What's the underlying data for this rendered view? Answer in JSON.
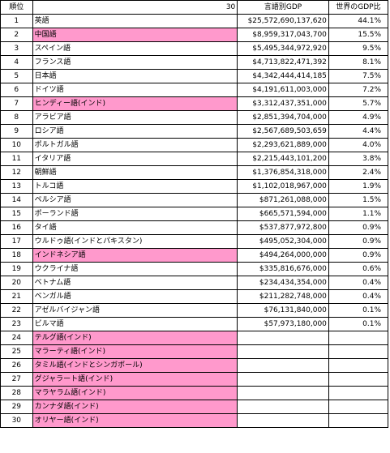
{
  "header": {
    "rank": "順位",
    "count": "30",
    "gdp": "言語別GDP",
    "share": "世界のGDP比"
  },
  "rows": [
    {
      "rank": "1",
      "lang": "英語",
      "gdp": "$25,572,690,137,620",
      "share": "44.1%",
      "highlight": false
    },
    {
      "rank": "2",
      "lang": "中国語",
      "gdp": "$8,959,317,043,700",
      "share": "15.5%",
      "highlight": true
    },
    {
      "rank": "3",
      "lang": "スペイン語",
      "gdp": "$5,495,344,972,920",
      "share": "9.5%",
      "highlight": false
    },
    {
      "rank": "4",
      "lang": "フランス語",
      "gdp": "$4,713,822,471,392",
      "share": "8.1%",
      "highlight": false
    },
    {
      "rank": "5",
      "lang": "日本語",
      "gdp": "$4,342,444,414,185",
      "share": "7.5%",
      "highlight": false
    },
    {
      "rank": "6",
      "lang": "ドイツ語",
      "gdp": "$4,191,611,003,000",
      "share": "7.2%",
      "highlight": false
    },
    {
      "rank": "7",
      "lang": "ヒンディー語(インド)",
      "gdp": "$3,312,437,351,000",
      "share": "5.7%",
      "highlight": true
    },
    {
      "rank": "8",
      "lang": "アラビア語",
      "gdp": "$2,851,394,704,000",
      "share": "4.9%",
      "highlight": false
    },
    {
      "rank": "9",
      "lang": "ロシア語",
      "gdp": "$2,567,689,503,659",
      "share": "4.4%",
      "highlight": false
    },
    {
      "rank": "10",
      "lang": "ポルトガル語",
      "gdp": "$2,293,621,889,000",
      "share": "4.0%",
      "highlight": false
    },
    {
      "rank": "11",
      "lang": "イタリア語",
      "gdp": "$2,215,443,101,200",
      "share": "3.8%",
      "highlight": false
    },
    {
      "rank": "12",
      "lang": "朝鮮語",
      "gdp": "$1,376,854,318,000",
      "share": "2.4%",
      "highlight": false
    },
    {
      "rank": "13",
      "lang": "トルコ語",
      "gdp": "$1,102,018,967,000",
      "share": "1.9%",
      "highlight": false
    },
    {
      "rank": "14",
      "lang": "ペルシア語",
      "gdp": "$871,261,088,000",
      "share": "1.5%",
      "highlight": false
    },
    {
      "rank": "15",
      "lang": "ポーランド語",
      "gdp": "$665,571,594,000",
      "share": "1.1%",
      "highlight": false
    },
    {
      "rank": "16",
      "lang": "タイ語",
      "gdp": "$537,877,972,800",
      "share": "0.9%",
      "highlight": false
    },
    {
      "rank": "17",
      "lang": "ウルドゥ語(インドとパキスタン)",
      "gdp": "$495,052,304,000",
      "share": "0.9%",
      "highlight": false
    },
    {
      "rank": "18",
      "lang": "インドネシア語",
      "gdp": "$494,264,000,000",
      "share": "0.9%",
      "highlight": true
    },
    {
      "rank": "19",
      "lang": "ウクライナ語",
      "gdp": "$335,816,676,000",
      "share": "0.6%",
      "highlight": false
    },
    {
      "rank": "20",
      "lang": "ベトナム語",
      "gdp": "$234,434,354,000",
      "share": "0.4%",
      "highlight": false
    },
    {
      "rank": "21",
      "lang": "ベンガル語",
      "gdp": "$211,282,748,000",
      "share": "0.4%",
      "highlight": false
    },
    {
      "rank": "22",
      "lang": "アゼルバイジャン語",
      "gdp": "$76,131,840,000",
      "share": "0.1%",
      "highlight": false
    },
    {
      "rank": "23",
      "lang": "ビルマ語",
      "gdp": "$57,973,180,000",
      "share": "0.1%",
      "highlight": false
    },
    {
      "rank": "24",
      "lang": "テルグ語(インド)",
      "gdp": "",
      "share": "",
      "highlight": true
    },
    {
      "rank": "25",
      "lang": "マラーティ語(インド)",
      "gdp": "",
      "share": "",
      "highlight": true
    },
    {
      "rank": "26",
      "lang": "タミル語(インドとシンガポール)",
      "gdp": "",
      "share": "",
      "highlight": true
    },
    {
      "rank": "27",
      "lang": "グジャラート語(インド)",
      "gdp": "",
      "share": "",
      "highlight": true
    },
    {
      "rank": "28",
      "lang": "マラヤラム語(インド)",
      "gdp": "",
      "share": "",
      "highlight": true
    },
    {
      "rank": "29",
      "lang": "カンナダ語(インド)",
      "gdp": "",
      "share": "",
      "highlight": true
    },
    {
      "rank": "30",
      "lang": "オリヤー語(インド)",
      "gdp": "",
      "share": "",
      "highlight": true
    }
  ],
  "colors": {
    "highlight": "#ff99cc",
    "border": "#000000"
  }
}
